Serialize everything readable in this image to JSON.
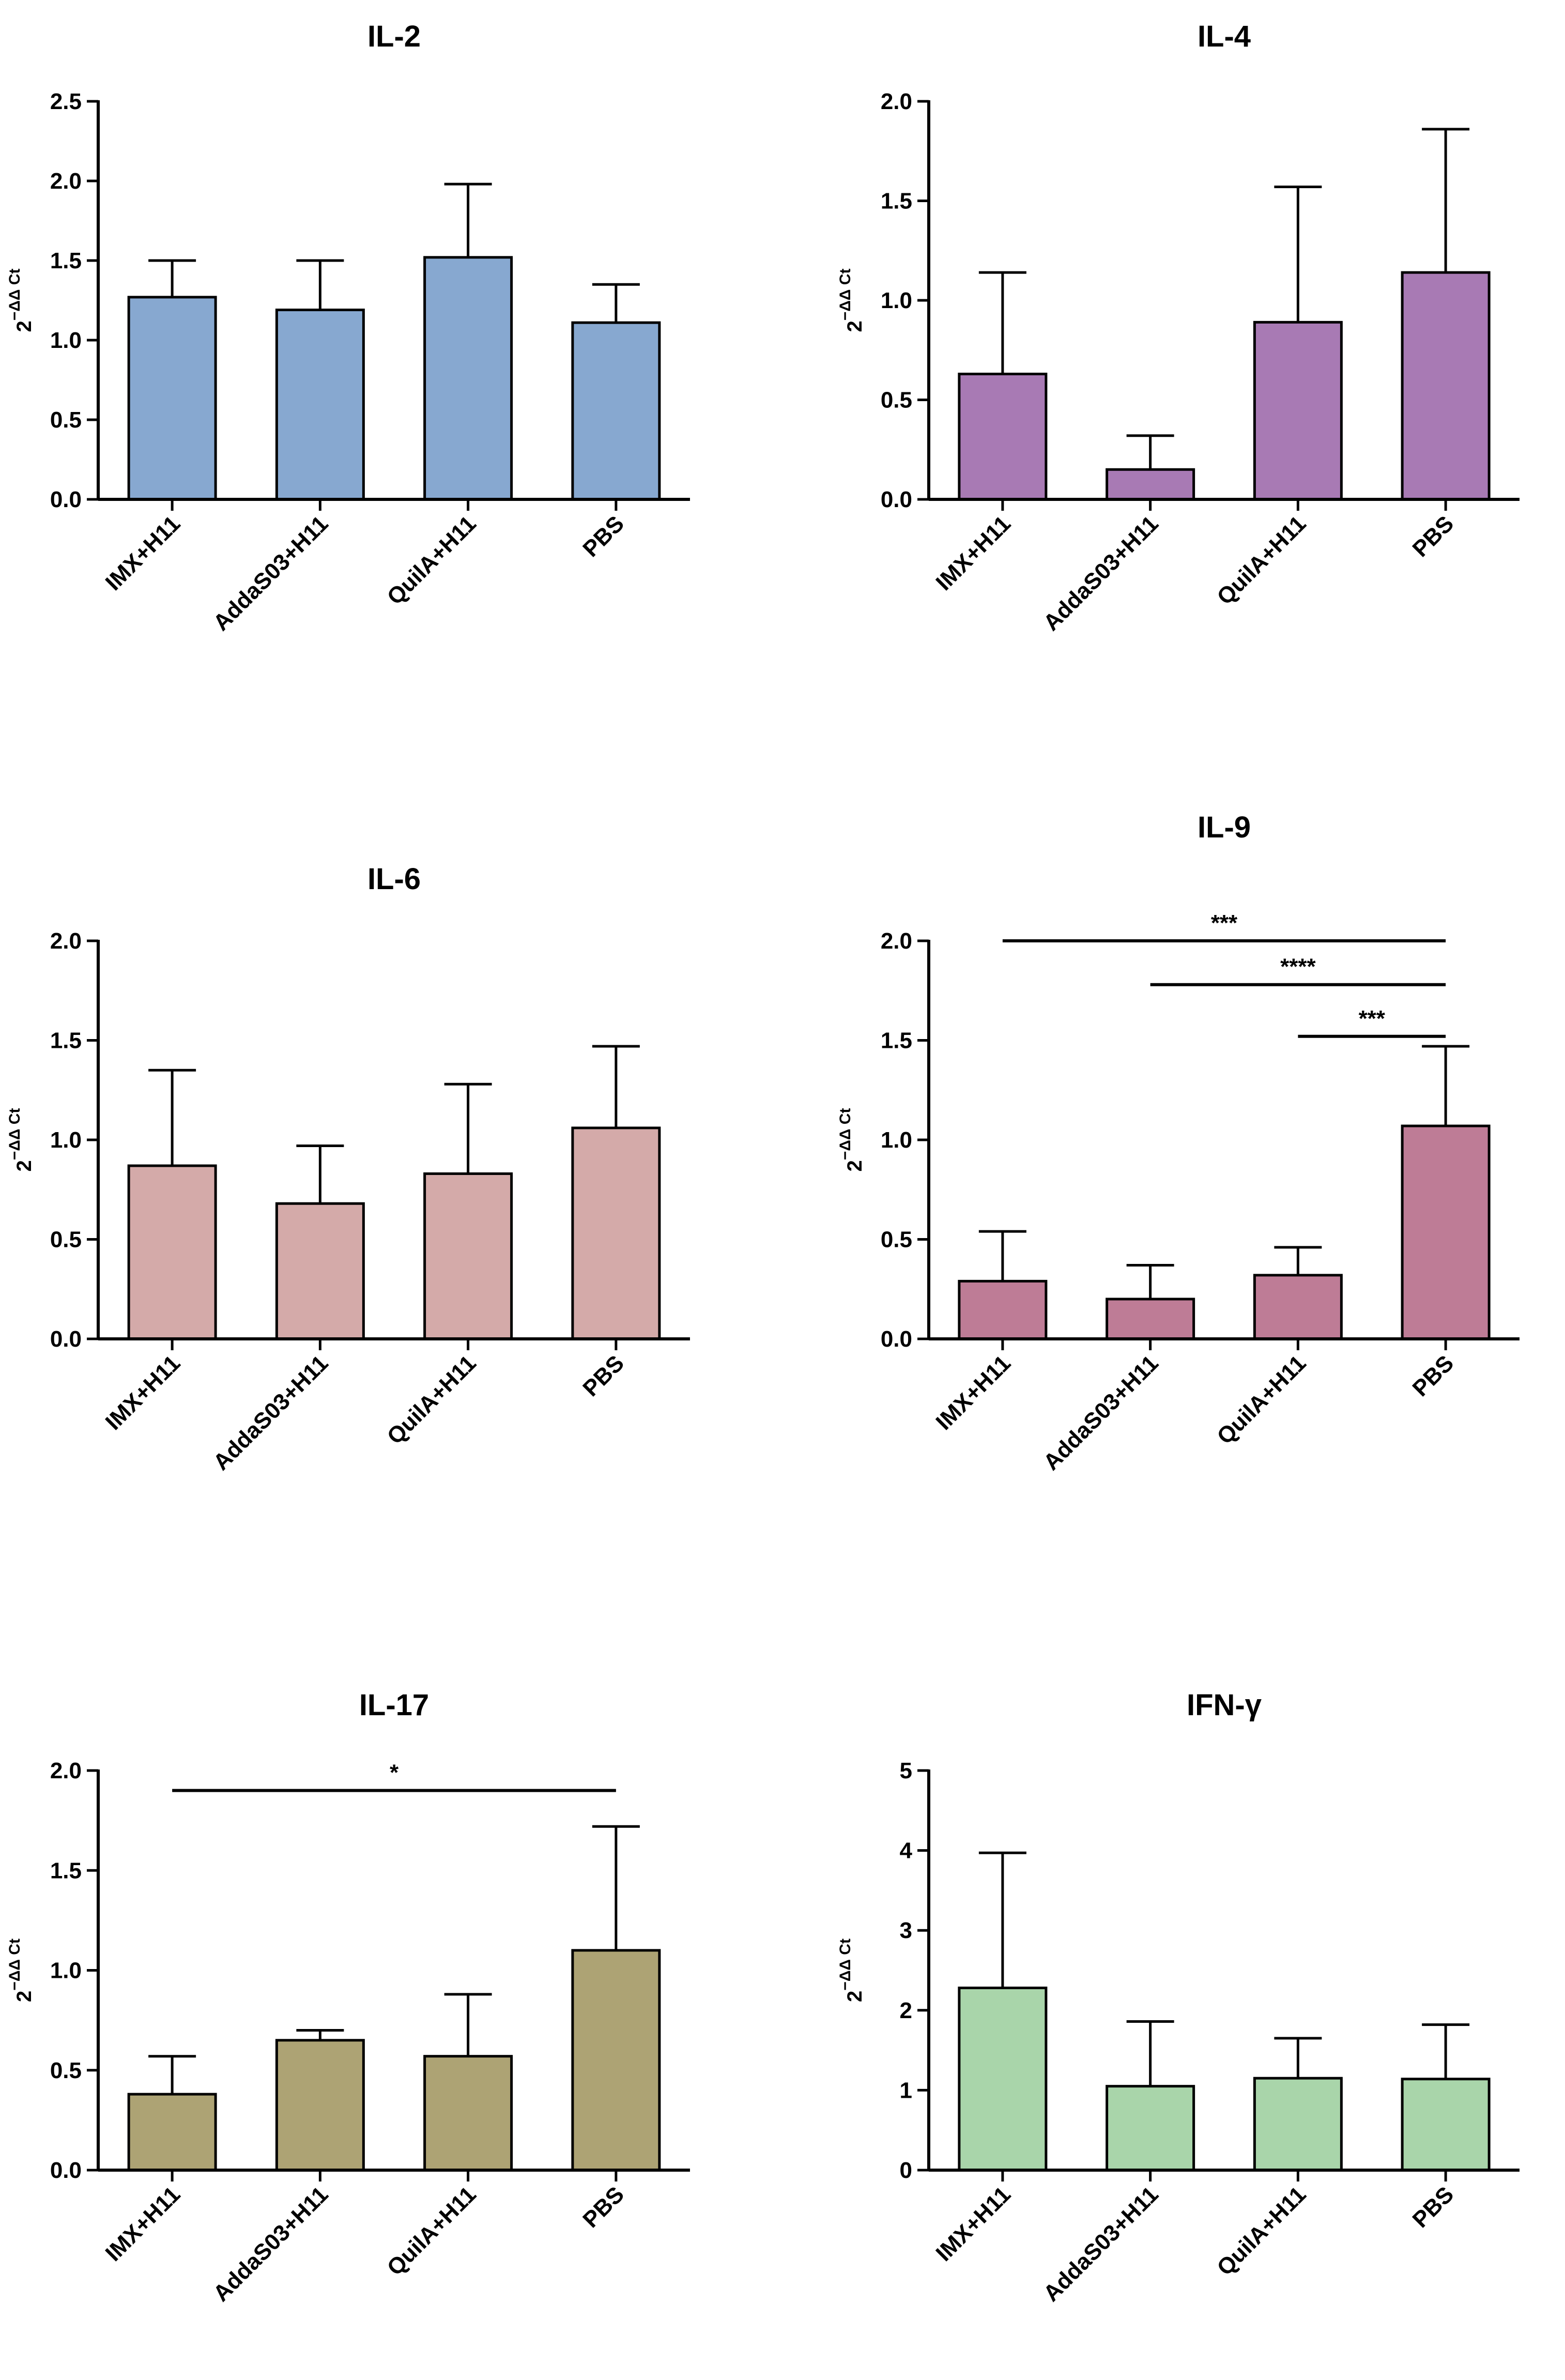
{
  "colors": {
    "IL-2": "#87a8d0",
    "IL-4": "#a87ab4",
    "IL-6": "#d4aaa9",
    "IL-9": "#be7c96",
    "IL-17": "#ada374",
    "IFN-γ": "#a9d5aa"
  },
  "chart_data": [
    {
      "type": "bar",
      "title": "IL-2",
      "categories": [
        "IMX+H11",
        "AddaS03+H11",
        "QuilA+H11",
        "PBS"
      ],
      "values": [
        1.27,
        1.19,
        1.52,
        1.11
      ],
      "errors": [
        0.23,
        0.31,
        0.46,
        0.24
      ],
      "ylabel_base": "2",
      "ylabel_exp": "−ΔΔ Ct",
      "ylim": [
        0,
        2.5
      ],
      "ticks": [
        "0.0",
        "0.5",
        "1.0",
        "1.5",
        "2.0",
        "2.5"
      ],
      "significance": []
    },
    {
      "type": "bar",
      "title": "IL-4",
      "categories": [
        "IMX+H11",
        "AddaS03+H11",
        "QuilA+H11",
        "PBS"
      ],
      "values": [
        0.63,
        0.15,
        0.89,
        1.14
      ],
      "errors": [
        0.51,
        0.17,
        0.68,
        0.72
      ],
      "ylabel_base": "2",
      "ylabel_exp": "−ΔΔ Ct",
      "ylim": [
        0,
        2.0
      ],
      "ticks": [
        "0.0",
        "0.5",
        "1.0",
        "1.5",
        "2.0"
      ],
      "significance": []
    },
    {
      "type": "bar",
      "title": "IL-6",
      "categories": [
        "IMX+H11",
        "AddaS03+H11",
        "QuilA+H11",
        "PBS"
      ],
      "values": [
        0.87,
        0.68,
        0.83,
        1.06
      ],
      "errors": [
        0.48,
        0.29,
        0.45,
        0.41
      ],
      "ylabel_base": "2",
      "ylabel_exp": "−ΔΔ Ct",
      "ylim": [
        0,
        2.0
      ],
      "ticks": [
        "0.0",
        "0.5",
        "1.0",
        "1.5",
        "2.0"
      ],
      "significance": []
    },
    {
      "type": "bar",
      "title": "IL-9",
      "categories": [
        "IMX+H11",
        "AddaS03+H11",
        "QuilA+H11",
        "PBS"
      ],
      "values": [
        0.29,
        0.2,
        0.32,
        1.07
      ],
      "errors": [
        0.25,
        0.17,
        0.14,
        0.4
      ],
      "ylabel_base": "2",
      "ylabel_exp": "−ΔΔ Ct",
      "ylim": [
        0,
        2.0
      ],
      "ticks": [
        "0.0",
        "0.5",
        "1.0",
        "1.5",
        "2.0"
      ],
      "significance": [
        {
          "from": "IMX+H11",
          "to": "PBS",
          "y": 2.0,
          "label": "***"
        },
        {
          "from": "AddaS03+H11",
          "to": "PBS",
          "y": 1.78,
          "label": "****"
        },
        {
          "from": "QuilA+H11",
          "to": "PBS",
          "y": 1.52,
          "label": "***"
        }
      ]
    },
    {
      "type": "bar",
      "title": "IL-17",
      "categories": [
        "IMX+H11",
        "AddaS03+H11",
        "QuilA+H11",
        "PBS"
      ],
      "values": [
        0.38,
        0.65,
        0.57,
        1.1
      ],
      "errors": [
        0.19,
        0.05,
        0.31,
        0.62
      ],
      "ylabel_base": "2",
      "ylabel_exp": "−ΔΔ Ct",
      "ylim": [
        0,
        2.0
      ],
      "ticks": [
        "0.0",
        "0.5",
        "1.0",
        "1.5",
        "2.0"
      ],
      "significance": [
        {
          "from": "IMX+H11",
          "to": "PBS",
          "y": 1.9,
          "label": "*"
        }
      ]
    },
    {
      "type": "bar",
      "title": "IFN-γ",
      "categories": [
        "IMX+H11",
        "AddaS03+H11",
        "QuilA+H11",
        "PBS"
      ],
      "values": [
        2.28,
        1.05,
        1.15,
        1.14
      ],
      "errors": [
        1.69,
        0.81,
        0.5,
        0.68
      ],
      "ylabel_base": "2",
      "ylabel_exp": "−ΔΔ Ct",
      "ylim": [
        0,
        5
      ],
      "ticks": [
        "0",
        "1",
        "2",
        "3",
        "4",
        "5"
      ],
      "significance": []
    }
  ]
}
